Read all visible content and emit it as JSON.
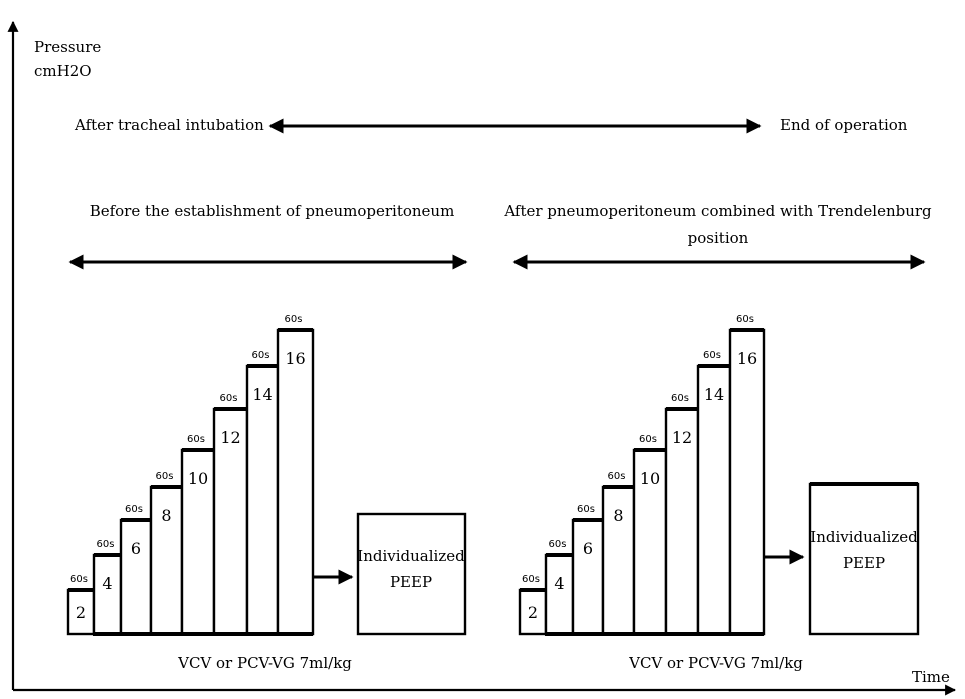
{
  "axes": {
    "y_label_line1": "Pressure",
    "y_label_line2": "cmH2O",
    "x_label": "Time"
  },
  "top_span": {
    "left": "After tracheal intubation",
    "right": "End of operation"
  },
  "phase_left": {
    "title": "Before the  establishment of pneumoperitoneum",
    "mode": "VCV or PCV-VG 7ml/kg",
    "result_line1": "Individualized",
    "result_line2": "PEEP"
  },
  "phase_right": {
    "title_line1": "After pneumoperitoneum combined with Trendelenburg",
    "title_line2": "position",
    "mode": "VCV or PCV-VG 7ml/kg",
    "result_line1": "Individualized",
    "result_line2": "PEEP"
  },
  "steps": [
    {
      "peep": "2",
      "duration": "60s"
    },
    {
      "peep": "4",
      "duration": "60s"
    },
    {
      "peep": "6",
      "duration": "60s"
    },
    {
      "peep": "8",
      "duration": "60s"
    },
    {
      "peep": "10",
      "duration": "60s"
    },
    {
      "peep": "12",
      "duration": "60s"
    },
    {
      "peep": "14",
      "duration": "60s"
    },
    {
      "peep": "16",
      "duration": "60s"
    }
  ]
}
